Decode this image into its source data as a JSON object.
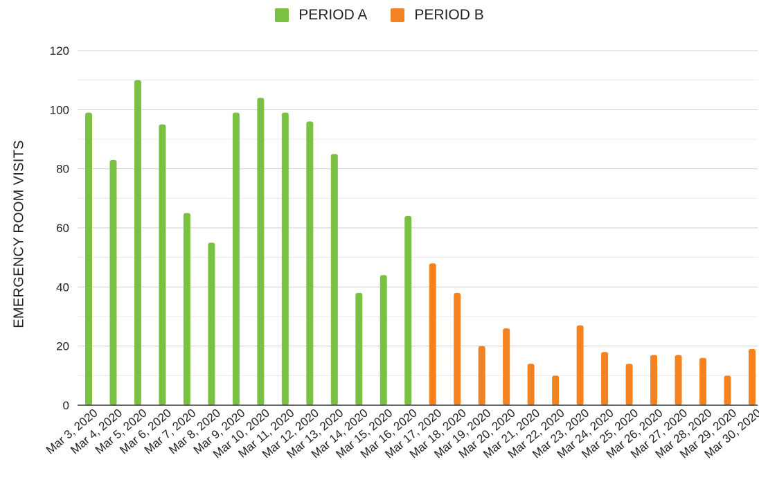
{
  "chart_data": {
    "type": "bar",
    "title": "",
    "xlabel": "",
    "ylabel": "EMERGENCY ROOM VISITS",
    "ylim": [
      0,
      120
    ],
    "yticks": [
      0,
      20,
      40,
      60,
      80,
      100,
      120
    ],
    "grid": true,
    "legend_position": "top-center",
    "categories": [
      "Mar 3, 2020",
      "Mar 4, 2020",
      "Mar 5, 2020",
      "Mar 6, 2020",
      "Mar 7, 2020",
      "Mar 8, 2020",
      "Mar 9, 2020",
      "Mar 10, 2020",
      "Mar 11, 2020",
      "Mar 12, 2020",
      "Mar 13, 2020",
      "Mar 14, 2020",
      "Mar 15, 2020",
      "Mar 16, 2020",
      "Mar 17, 2020",
      "Mar 18, 2020",
      "Mar 19, 2020",
      "Mar 20, 2020",
      "Mar 21, 2020",
      "Mar 22, 2020",
      "Mar 23, 2020",
      "Mar 24, 2020",
      "Mar 25, 2020",
      "Mar 26, 2020",
      "Mar 27, 2020",
      "Mar 28, 2020",
      "Mar 29, 2020",
      "Mar 30, 2020"
    ],
    "series": [
      {
        "name": "PERIOD A",
        "color": "#7ac143",
        "values": [
          99,
          83,
          110,
          95,
          65,
          55,
          99,
          104,
          99,
          96,
          85,
          38,
          44,
          64,
          null,
          null,
          null,
          null,
          null,
          null,
          null,
          null,
          null,
          null,
          null,
          null,
          null,
          null
        ]
      },
      {
        "name": "PERIOD B",
        "color": "#f58220",
        "values": [
          null,
          null,
          null,
          null,
          null,
          null,
          null,
          null,
          null,
          null,
          null,
          null,
          null,
          null,
          48,
          38,
          20,
          26,
          14,
          10,
          27,
          18,
          14,
          17,
          17,
          16,
          10,
          19
        ]
      }
    ]
  }
}
